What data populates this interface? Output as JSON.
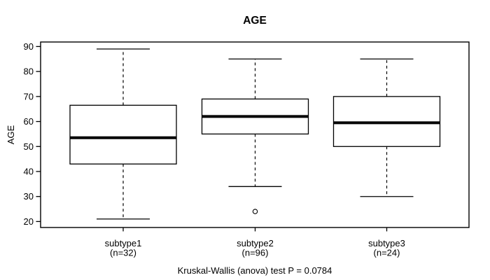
{
  "title": "AGE",
  "caption": "Kruskal-Wallis (anova) test P = 0.0784",
  "axes": {
    "y_label": "AGE",
    "y_ticks": [
      20,
      30,
      40,
      50,
      60,
      70,
      80,
      90
    ]
  },
  "colors": {
    "line": "#000000",
    "box_fill": "#ffffff",
    "background": "#ffffff"
  },
  "chart_data": {
    "type": "boxplot",
    "title": "AGE",
    "ylabel": "AGE",
    "xlabel": "",
    "ylim": [
      17.6,
      91.8
    ],
    "y_ticks": [
      20,
      30,
      40,
      50,
      60,
      70,
      80,
      90
    ],
    "grid": false,
    "legend": "none",
    "footnote": "Kruskal-Wallis (anova) test P = 0.0784",
    "groups": [
      {
        "label": "subtype1",
        "sublabel": "(n=32)",
        "n": 32,
        "whisker_low": 21,
        "q1": 43,
        "median": 53.5,
        "q3": 66.5,
        "whisker_high": 89,
        "outliers": []
      },
      {
        "label": "subtype2",
        "sublabel": "(n=96)",
        "n": 96,
        "whisker_low": 34,
        "q1": 55,
        "median": 62,
        "q3": 69,
        "whisker_high": 85,
        "outliers": [
          24
        ]
      },
      {
        "label": "subtype3",
        "sublabel": "(n=24)",
        "n": 24,
        "whisker_low": 30,
        "q1": 50,
        "median": 59.5,
        "q3": 70,
        "whisker_high": 85,
        "outliers": []
      }
    ]
  }
}
